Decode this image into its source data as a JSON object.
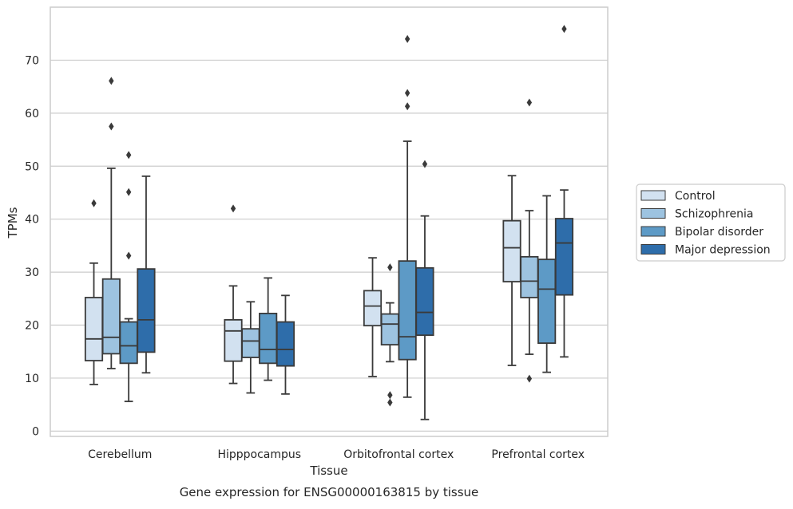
{
  "chart_data": {
    "type": "box",
    "xlabel": "Tissue",
    "ylabel": "TPMs",
    "caption": "Gene expression for ENSG00000163815 by tissue",
    "ylim": [
      -1,
      80
    ],
    "yticks": [
      0,
      10,
      20,
      30,
      40,
      50,
      60,
      70
    ],
    "grid": true,
    "legend_position": "right",
    "categories": [
      "Cerebellum",
      "Hipppocampus",
      "Orbitofrontal cortex",
      "Prefrontal cortex"
    ],
    "series": [
      {
        "name": "Control",
        "color": "#d2e1f0",
        "boxes": [
          {
            "whislo": 8.8,
            "q1": 13.3,
            "med": 17.4,
            "q3": 25.2,
            "whishi": 31.7,
            "fliers": [
              43.0
            ]
          },
          {
            "whislo": 9.0,
            "q1": 13.2,
            "med": 18.9,
            "q3": 21.0,
            "whishi": 27.4,
            "fliers": [
              42.0
            ]
          },
          {
            "whislo": 10.3,
            "q1": 19.9,
            "med": 23.6,
            "q3": 26.5,
            "whishi": 32.7,
            "fliers": []
          },
          {
            "whislo": 12.4,
            "q1": 28.2,
            "med": 34.6,
            "q3": 39.7,
            "whishi": 48.2,
            "fliers": []
          }
        ]
      },
      {
        "name": "Schizophrenia",
        "color": "#9dc3e0",
        "boxes": [
          {
            "whislo": 11.8,
            "q1": 14.6,
            "med": 17.7,
            "q3": 28.7,
            "whishi": 49.6,
            "fliers": [
              57.5,
              66.1
            ]
          },
          {
            "whislo": 7.2,
            "q1": 13.9,
            "med": 17.0,
            "q3": 19.3,
            "whishi": 24.4,
            "fliers": []
          },
          {
            "whislo": 13.1,
            "q1": 16.3,
            "med": 20.2,
            "q3": 22.1,
            "whishi": 24.2,
            "fliers": [
              30.9,
              6.8,
              5.4
            ]
          },
          {
            "whislo": 14.5,
            "q1": 25.2,
            "med": 28.3,
            "q3": 32.9,
            "whishi": 41.6,
            "fliers": [
              62.0,
              9.9
            ]
          }
        ]
      },
      {
        "name": "Bipolar disorder",
        "color": "#5d9ac6",
        "boxes": [
          {
            "whislo": 5.6,
            "q1": 12.8,
            "med": 16.1,
            "q3": 20.6,
            "whishi": 21.2,
            "fliers": [
              52.1,
              45.1,
              33.1
            ]
          },
          {
            "whislo": 9.6,
            "q1": 12.8,
            "med": 15.4,
            "q3": 22.2,
            "whishi": 28.9,
            "fliers": []
          },
          {
            "whislo": 6.4,
            "q1": 13.5,
            "med": 17.8,
            "q3": 32.1,
            "whishi": 54.7,
            "fliers": [
              74.0,
              63.8,
              61.3
            ]
          },
          {
            "whislo": 11.1,
            "q1": 16.6,
            "med": 26.8,
            "q3": 32.4,
            "whishi": 44.4,
            "fliers": []
          }
        ]
      },
      {
        "name": "Major depression",
        "color": "#2e6daa",
        "boxes": [
          {
            "whislo": 11.0,
            "q1": 14.9,
            "med": 21.0,
            "q3": 30.6,
            "whishi": 48.1,
            "fliers": []
          },
          {
            "whislo": 7.0,
            "q1": 12.3,
            "med": 15.4,
            "q3": 20.6,
            "whishi": 25.6,
            "fliers": []
          },
          {
            "whislo": 2.2,
            "q1": 18.1,
            "med": 22.4,
            "q3": 30.8,
            "whishi": 40.6,
            "fliers": [
              50.4
            ]
          },
          {
            "whislo": 14.0,
            "q1": 25.7,
            "med": 35.5,
            "q3": 40.1,
            "whishi": 45.5,
            "fliers": [
              75.9
            ]
          }
        ]
      }
    ]
  }
}
